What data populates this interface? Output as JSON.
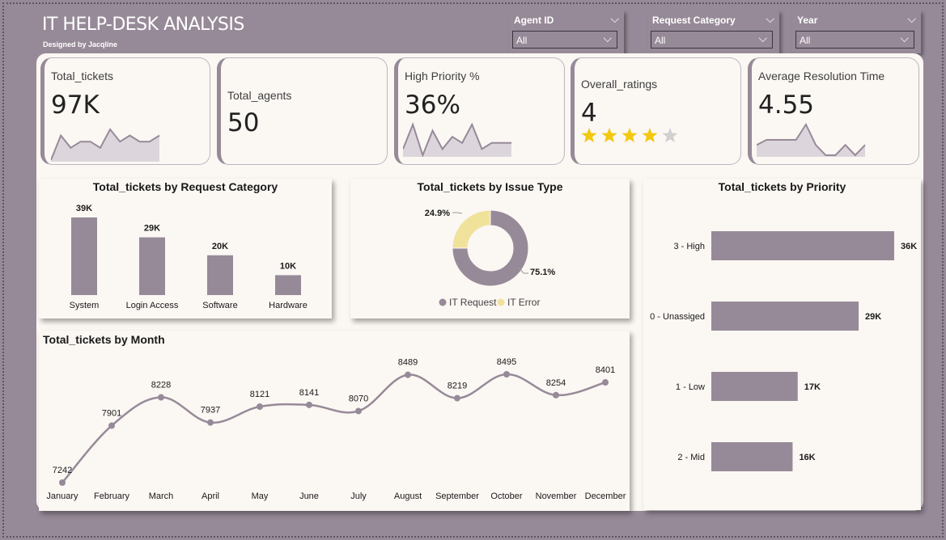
{
  "header": {
    "title": "IT HELP-DESK ANALYSIS",
    "subtitle": "Designed by Jacqline"
  },
  "slicers": [
    {
      "label": "Agent ID",
      "value": "All"
    },
    {
      "label": "Request Category",
      "value": "All"
    },
    {
      "label": "Year",
      "value": "All"
    }
  ],
  "kpis": {
    "total_tickets": {
      "label": "Total_tickets",
      "value": "97K"
    },
    "total_agents": {
      "label": "Total_agents",
      "value": "50"
    },
    "high_priority": {
      "label": "High Priority %",
      "value": "36%"
    },
    "overall_ratings": {
      "label": "Overall_ratings",
      "value": "4",
      "stars_filled": 4,
      "stars_total": 5
    },
    "avg_resolution": {
      "label": "Average Resolution Time",
      "value": "4.55"
    }
  },
  "colors": {
    "accent": "#978a98",
    "panel": "#fbf7f3",
    "star": "#f2c811",
    "star_empty": "#d0d0d0",
    "donut_secondary": "#f0e29a"
  },
  "chart_data": [
    {
      "type": "bar",
      "title": "Total_tickets by Request Category",
      "categories": [
        "System",
        "Login Access",
        "Software",
        "Hardware"
      ],
      "values": [
        39,
        29,
        20,
        10
      ],
      "labels": [
        "39K",
        "29K",
        "20K",
        "10K"
      ],
      "ylim": [
        0,
        39
      ]
    },
    {
      "type": "pie",
      "title": "Total_tickets by Issue Type",
      "categories": [
        "IT Request",
        "IT Error"
      ],
      "values": [
        75.1,
        24.9
      ],
      "labels": [
        "75.1%",
        "24.9%"
      ],
      "legend": "bottom"
    },
    {
      "type": "bar",
      "orientation": "horizontal",
      "title": "Total_tickets by Priority",
      "categories": [
        "3 - High",
        "0 - Unassiged",
        "1 - Low",
        "2 - Mid"
      ],
      "values": [
        36,
        29,
        17,
        16
      ],
      "labels": [
        "36K",
        "29K",
        "17K",
        "16K"
      ],
      "xlim": [
        0,
        36
      ]
    },
    {
      "type": "line",
      "title": "Total_tickets by Month",
      "categories": [
        "January",
        "February",
        "March",
        "April",
        "May",
        "June",
        "July",
        "August",
        "September",
        "October",
        "November",
        "December"
      ],
      "values": [
        7242,
        7901,
        8228,
        7937,
        8121,
        8141,
        8070,
        8489,
        8219,
        8495,
        8254,
        8401
      ],
      "ylim": [
        7242,
        8495
      ]
    }
  ],
  "sparklines": {
    "total_tickets": [
      2,
      6,
      4,
      5,
      5,
      4,
      7,
      5,
      6,
      5,
      5,
      6
    ],
    "high_priority": [
      3,
      7,
      2,
      6,
      3,
      5,
      4,
      7,
      3,
      4,
      4,
      4
    ],
    "avg_resolution": [
      4,
      4.5,
      4.5,
      4.5,
      4.5,
      6,
      4,
      3,
      3,
      4,
      3,
      4
    ]
  }
}
